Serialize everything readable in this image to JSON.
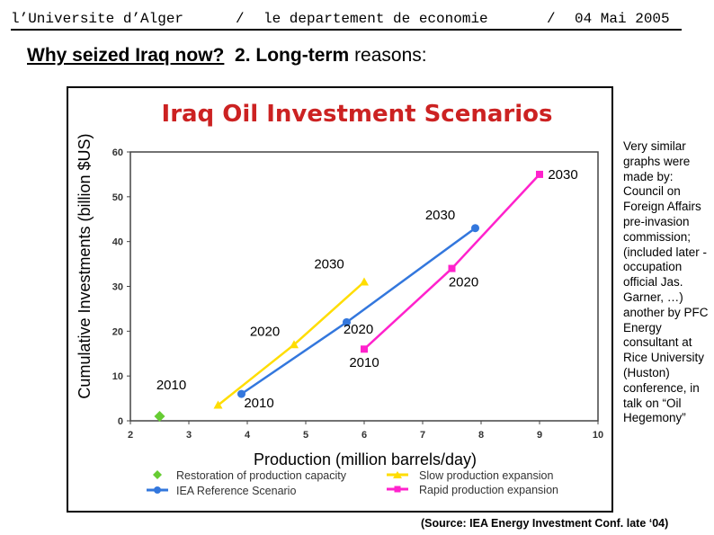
{
  "header": {
    "left": "l’Universite d’Alger",
    "sep1": "/",
    "middle": "le departement de economie",
    "sep2": "/",
    "date": "04 Mai 2005"
  },
  "title": {
    "part1": "Why seized Iraq now?",
    "part2": "2. Long-term",
    "part3": "reasons:"
  },
  "side_note": "Very similar graphs were made by: Council on Foreign Affairs pre-invasion commission; (included later - occupation official Jas. Garner, …) another by PFC Energy consultant at Rice University (Huston) conference, in talk on “Oil Hegemony”",
  "source": "(Source: IEA Energy Investment Conf. late ‘04)",
  "chart_data": {
    "type": "line",
    "title": "Iraq Oil Investment Scenarios",
    "xlabel": "Production (million barrels/day)",
    "ylabel": "Cumulative Investments (billion $US)",
    "xlim": [
      2,
      10
    ],
    "ylim": [
      0,
      60
    ],
    "xticks": [
      2,
      3,
      4,
      5,
      6,
      7,
      8,
      9,
      10
    ],
    "yticks": [
      0,
      10,
      20,
      30,
      40,
      50,
      60
    ],
    "series": [
      {
        "name": "Restoration of production capacity",
        "color": "#66cc33",
        "marker": "diamond",
        "points": [
          [
            2.5,
            1
          ]
        ]
      },
      {
        "name": "IEA Reference Scenario",
        "color": "#3377dd",
        "marker": "circle",
        "points": [
          [
            3.9,
            6
          ],
          [
            5.7,
            22
          ],
          [
            7.9,
            43
          ]
        ]
      },
      {
        "name": "Slow production expansion",
        "color": "#ffdd00",
        "marker": "triangle",
        "points": [
          [
            3.5,
            3.5
          ],
          [
            4.8,
            17
          ],
          [
            6.0,
            31
          ]
        ]
      },
      {
        "name": "Rapid production expansion",
        "color": "#ff22cc",
        "marker": "square",
        "points": [
          [
            6.0,
            16
          ],
          [
            7.5,
            34
          ],
          [
            9.0,
            55
          ]
        ]
      }
    ],
    "annotations": [
      {
        "text": "2010",
        "x": 2.7,
        "y": 7
      },
      {
        "text": "2010",
        "x": 4.2,
        "y": 3
      },
      {
        "text": "2010",
        "x": 6.0,
        "y": 12
      },
      {
        "text": "2020",
        "x": 4.3,
        "y": 19
      },
      {
        "text": "2020",
        "x": 7.7,
        "y": 30
      },
      {
        "text": "2020",
        "x": 5.9,
        "y": 19.5
      },
      {
        "text": "2030",
        "x": 5.4,
        "y": 34
      },
      {
        "text": "2030",
        "x": 7.3,
        "y": 45
      },
      {
        "text": "2030",
        "x": 9.4,
        "y": 54
      }
    ]
  }
}
